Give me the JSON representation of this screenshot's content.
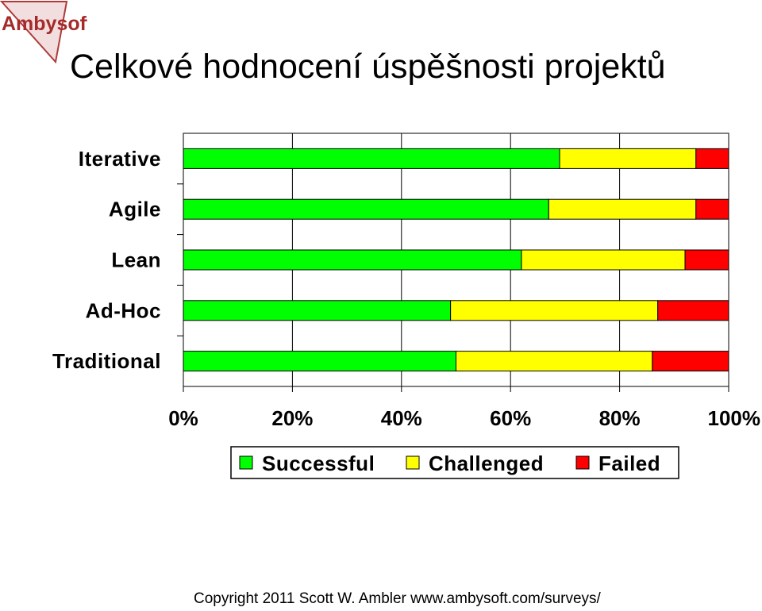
{
  "logo": {
    "text": "Ambysoft",
    "accent": "#c0392b"
  },
  "title": "Celkové hodnocení úspěšnosti projektů",
  "footer": "Copyright 2011 Scott W. Ambler www.ambysoft.com/surveys/",
  "chart_data": {
    "type": "bar",
    "orientation": "horizontal",
    "stacked": true,
    "categories": [
      "Iterative",
      "Agile",
      "Lean",
      "Ad-Hoc",
      "Traditional"
    ],
    "series": [
      {
        "name": "Successful",
        "color": "#00ff00",
        "values": [
          69,
          67,
          62,
          49,
          50
        ]
      },
      {
        "name": "Challenged",
        "color": "#ffff00",
        "values": [
          25,
          27,
          30,
          38,
          36
        ]
      },
      {
        "name": "Failed",
        "color": "#ff0000",
        "values": [
          6,
          6,
          8,
          13,
          14
        ]
      }
    ],
    "xlim": [
      0,
      100
    ],
    "xticks": [
      "0%",
      "20%",
      "40%",
      "60%",
      "80%",
      "100%"
    ],
    "grid": true,
    "legend_position": "bottom"
  }
}
